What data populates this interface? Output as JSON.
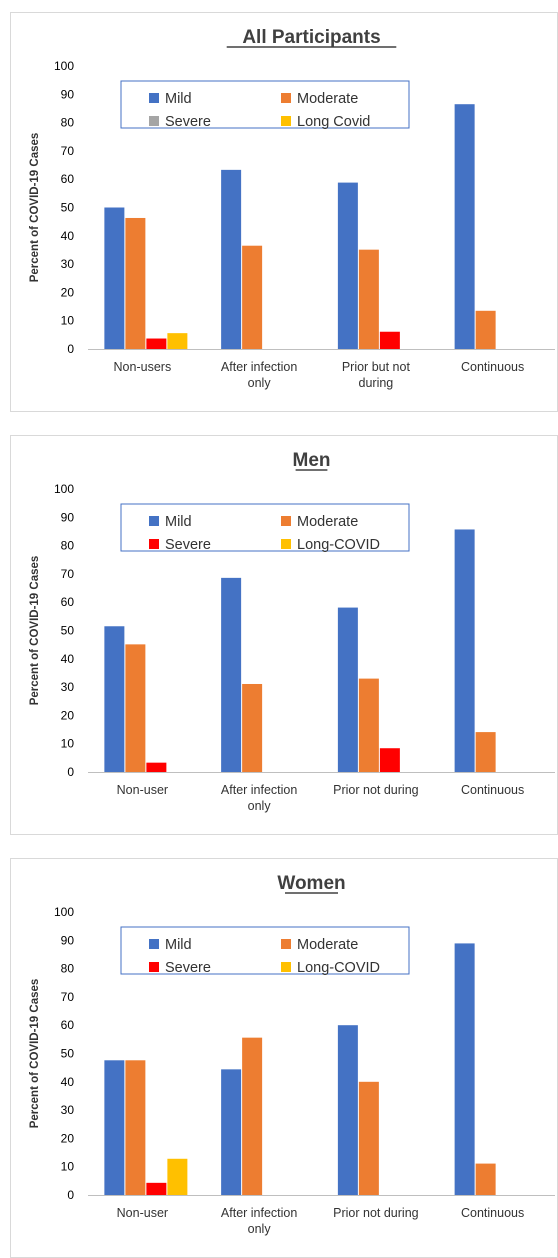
{
  "chart_data": [
    {
      "type": "bar",
      "title": "All Participants",
      "ylabel": "Percent of COVID-19 Cases",
      "xlabel": "",
      "ylim": [
        0,
        100
      ],
      "yticks": [
        0,
        10,
        20,
        30,
        40,
        50,
        60,
        70,
        80,
        90,
        100
      ],
      "categories": [
        [
          "Non-users"
        ],
        [
          "After infection",
          "only"
        ],
        [
          "Prior but not",
          "during"
        ],
        [
          "Continuous"
        ]
      ],
      "legend_position": "top",
      "series": [
        {
          "name": "Mild",
          "color": "#4472c4",
          "values": [
            50,
            63.3,
            58.8,
            86.5
          ]
        },
        {
          "name": "Moderate",
          "color": "#ed7d31",
          "values": [
            46.3,
            36.5,
            35.1,
            13.5
          ]
        },
        {
          "name": "Severe",
          "color": "#a5a5a5",
          "values": [
            null,
            null,
            null,
            null
          ]
        },
        {
          "name": "Long Covid",
          "color": "#ffc000",
          "values": [
            5.6,
            null,
            null,
            null
          ]
        }
      ],
      "extra_series": [
        {
          "color": "#ff0000",
          "values": [
            3.7,
            null,
            6.1,
            null
          ]
        }
      ]
    },
    {
      "type": "bar",
      "title": "Men",
      "ylabel": "Percent of COVID-19 Cases",
      "xlabel": "",
      "ylim": [
        0,
        100
      ],
      "yticks": [
        0,
        10,
        20,
        30,
        40,
        50,
        60,
        70,
        80,
        90,
        100
      ],
      "categories": [
        [
          "Non-user"
        ],
        [
          "After infection",
          "only"
        ],
        [
          "Prior not during"
        ],
        [
          "Continuous"
        ]
      ],
      "legend_position": "top",
      "series": [
        {
          "name": "Mild",
          "color": "#4472c4",
          "values": [
            51.5,
            68.6,
            58.1,
            85.7
          ]
        },
        {
          "name": "Moderate",
          "color": "#ed7d31",
          "values": [
            45.1,
            31.1,
            33.0,
            14.1
          ]
        },
        {
          "name": "Severe",
          "color": "#ff0000",
          "values": [
            3.3,
            null,
            8.4,
            null
          ]
        },
        {
          "name": "Long-COVID",
          "color": "#ffc000",
          "values": [
            null,
            null,
            null,
            null
          ]
        }
      ]
    },
    {
      "type": "bar",
      "title": "Women",
      "ylabel": "Percent of COVID-19 Cases",
      "xlabel": "",
      "ylim": [
        0,
        100
      ],
      "yticks": [
        0,
        10,
        20,
        30,
        40,
        50,
        60,
        70,
        80,
        90,
        100
      ],
      "categories": [
        [
          "Non-user"
        ],
        [
          "After infection",
          "only"
        ],
        [
          "Prior not during"
        ],
        [
          "Continuous"
        ]
      ],
      "legend_position": "top",
      "series": [
        {
          "name": "Mild",
          "color": "#4472c4",
          "values": [
            47.6,
            44.4,
            60.0,
            88.9
          ]
        },
        {
          "name": "Moderate",
          "color": "#ed7d31",
          "values": [
            47.6,
            55.6,
            40.0,
            11.1
          ]
        },
        {
          "name": "Severe",
          "color": "#ff0000",
          "values": [
            4.3,
            null,
            null,
            null
          ]
        },
        {
          "name": "Long-COVID",
          "color": "#ffc000",
          "values": [
            12.8,
            null,
            null,
            null
          ]
        }
      ]
    }
  ]
}
